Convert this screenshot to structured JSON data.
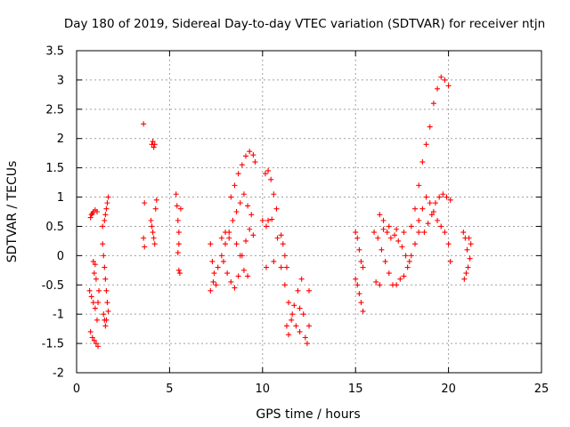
{
  "chart_data": {
    "type": "scatter",
    "title": "Day 180 of 2019, Sidereal Day-to-day VTEC variation (SDTVAR) for receiver ntjn",
    "xlabel": "GPS time / hours",
    "ylabel": "SDTVAR / TECUs",
    "xlim": [
      0,
      25
    ],
    "ylim": [
      -2,
      3.5
    ],
    "xticks": [
      "0",
      "5",
      "10",
      "15",
      "20",
      "25"
    ],
    "yticks": [
      "-2",
      "-1.5",
      "-1",
      "-0.5",
      "0",
      "0.5",
      "1",
      "1.5",
      "2",
      "2.5",
      "3",
      "3.5"
    ],
    "xtick_values": [
      0,
      5,
      10,
      15,
      20,
      25
    ],
    "ytick_values": [
      -2,
      -1.5,
      -1,
      -0.5,
      0,
      0.5,
      1,
      1.5,
      2,
      2.5,
      3,
      3.5
    ],
    "grid": true,
    "marker": "+",
    "color": "#ff0000",
    "series": [
      {
        "points": [
          [
            0.75,
            0.65
          ],
          [
            0.8,
            0.7
          ],
          [
            0.85,
            0.72
          ],
          [
            0.9,
            0.75
          ],
          [
            1.0,
            0.78
          ],
          [
            1.1,
            0.75
          ],
          [
            0.7,
            -0.6
          ],
          [
            0.8,
            -0.7
          ],
          [
            0.9,
            -0.8
          ],
          [
            1.0,
            -0.9
          ],
          [
            1.1,
            -1.1
          ],
          [
            1.15,
            -0.8
          ],
          [
            1.2,
            -0.6
          ],
          [
            0.75,
            -1.3
          ],
          [
            0.85,
            -1.4
          ],
          [
            0.95,
            -1.45
          ],
          [
            1.05,
            -1.5
          ],
          [
            1.15,
            -1.55
          ],
          [
            0.9,
            -0.1
          ],
          [
            1.0,
            -0.15
          ],
          [
            0.95,
            -0.3
          ],
          [
            1.05,
            -0.4
          ],
          [
            1.4,
            0.5
          ],
          [
            1.5,
            0.6
          ],
          [
            1.55,
            0.7
          ],
          [
            1.6,
            0.8
          ],
          [
            1.65,
            0.9
          ],
          [
            1.7,
            1.0
          ],
          [
            1.4,
            0.2
          ],
          [
            1.45,
            0.0
          ],
          [
            1.5,
            -0.2
          ],
          [
            1.55,
            -0.4
          ],
          [
            1.6,
            -0.6
          ],
          [
            1.65,
            -0.8
          ],
          [
            1.7,
            -0.95
          ],
          [
            1.45,
            -1.0
          ],
          [
            1.5,
            -1.1
          ],
          [
            1.55,
            -1.2
          ],
          [
            1.6,
            -1.1
          ],
          [
            3.6,
            2.25
          ],
          [
            3.65,
            0.9
          ],
          [
            3.6,
            0.3
          ],
          [
            3.65,
            0.15
          ],
          [
            4.0,
            0.6
          ],
          [
            4.05,
            0.5
          ],
          [
            4.1,
            0.4
          ],
          [
            4.15,
            0.3
          ],
          [
            4.2,
            0.2
          ],
          [
            4.05,
            1.9
          ],
          [
            4.1,
            1.95
          ],
          [
            4.15,
            1.85
          ],
          [
            4.2,
            1.9
          ],
          [
            4.25,
            0.8
          ],
          [
            4.3,
            0.95
          ],
          [
            5.35,
            1.05
          ],
          [
            5.4,
            0.85
          ],
          [
            5.45,
            0.6
          ],
          [
            5.5,
            0.4
          ],
          [
            5.5,
            0.2
          ],
          [
            5.45,
            0.05
          ],
          [
            5.5,
            -0.25
          ],
          [
            5.55,
            -0.3
          ],
          [
            5.6,
            0.8
          ],
          [
            7.2,
            0.2
          ],
          [
            7.3,
            -0.1
          ],
          [
            7.4,
            -0.3
          ],
          [
            7.5,
            -0.5
          ],
          [
            7.2,
            -0.6
          ],
          [
            7.35,
            -0.45
          ],
          [
            7.6,
            -0.2
          ],
          [
            7.8,
            0.0
          ],
          [
            8.0,
            0.2
          ],
          [
            8.2,
            0.4
          ],
          [
            8.4,
            0.6
          ],
          [
            8.6,
            0.75
          ],
          [
            8.8,
            0.9
          ],
          [
            9.0,
            1.05
          ],
          [
            9.2,
            0.85
          ],
          [
            9.4,
            0.7
          ],
          [
            7.9,
            -0.1
          ],
          [
            8.1,
            -0.3
          ],
          [
            8.3,
            -0.45
          ],
          [
            8.5,
            -0.55
          ],
          [
            8.7,
            -0.35
          ],
          [
            8.9,
            0.0
          ],
          [
            9.1,
            0.25
          ],
          [
            9.3,
            0.45
          ],
          [
            9.5,
            0.35
          ],
          [
            7.8,
            0.3
          ],
          [
            8.0,
            0.4
          ],
          [
            8.2,
            0.3
          ],
          [
            8.3,
            1.0
          ],
          [
            8.5,
            1.2
          ],
          [
            8.7,
            1.4
          ],
          [
            8.9,
            1.55
          ],
          [
            9.1,
            1.7
          ],
          [
            9.3,
            1.78
          ],
          [
            9.5,
            1.72
          ],
          [
            9.6,
            1.6
          ],
          [
            8.6,
            0.2
          ],
          [
            8.8,
            0.0
          ],
          [
            9.0,
            -0.25
          ],
          [
            9.2,
            -0.35
          ],
          [
            10.0,
            0.6
          ],
          [
            10.15,
            1.4
          ],
          [
            10.3,
            1.45
          ],
          [
            10.45,
            1.3
          ],
          [
            10.6,
            1.05
          ],
          [
            10.75,
            0.8
          ],
          [
            10.2,
            0.5
          ],
          [
            10.3,
            0.6
          ],
          [
            10.5,
            0.62
          ],
          [
            10.2,
            -0.2
          ],
          [
            10.6,
            -0.1
          ],
          [
            10.8,
            0.3
          ],
          [
            11.0,
            -0.2
          ],
          [
            11.2,
            -0.5
          ],
          [
            11.4,
            -0.8
          ],
          [
            11.6,
            -1.0
          ],
          [
            11.8,
            -1.2
          ],
          [
            12.0,
            -1.3
          ],
          [
            11.0,
            0.35
          ],
          [
            11.1,
            0.2
          ],
          [
            11.2,
            0.0
          ],
          [
            11.3,
            -0.2
          ],
          [
            11.3,
            -1.2
          ],
          [
            11.4,
            -1.35
          ],
          [
            11.55,
            -1.1
          ],
          [
            11.7,
            -0.85
          ],
          [
            11.9,
            -0.6
          ],
          [
            12.1,
            -0.4
          ],
          [
            12.0,
            -0.9
          ],
          [
            12.2,
            -1.0
          ],
          [
            12.3,
            -1.4
          ],
          [
            12.4,
            -1.5
          ],
          [
            12.5,
            -1.2
          ],
          [
            12.5,
            -0.6
          ],
          [
            15.0,
            0.4
          ],
          [
            15.1,
            0.3
          ],
          [
            15.2,
            0.1
          ],
          [
            15.3,
            -0.1
          ],
          [
            15.4,
            -0.2
          ],
          [
            15.0,
            -0.4
          ],
          [
            15.1,
            -0.5
          ],
          [
            15.2,
            -0.65
          ],
          [
            15.3,
            -0.8
          ],
          [
            15.4,
            -0.95
          ],
          [
            16.0,
            0.4
          ],
          [
            16.2,
            0.3
          ],
          [
            16.4,
            0.1
          ],
          [
            16.6,
            -0.1
          ],
          [
            16.8,
            -0.3
          ],
          [
            17.0,
            -0.5
          ],
          [
            16.1,
            -0.45
          ],
          [
            16.3,
            -0.5
          ],
          [
            16.5,
            0.45
          ],
          [
            16.7,
            0.4
          ],
          [
            16.9,
            0.3
          ],
          [
            17.1,
            0.35
          ],
          [
            17.3,
            0.25
          ],
          [
            17.5,
            0.15
          ],
          [
            17.7,
            0.0
          ],
          [
            17.9,
            -0.1
          ],
          [
            16.3,
            0.7
          ],
          [
            16.5,
            0.6
          ],
          [
            16.8,
            0.5
          ],
          [
            17.2,
            0.45
          ],
          [
            17.6,
            0.4
          ],
          [
            18.0,
            0.5
          ],
          [
            18.2,
            0.8
          ],
          [
            18.4,
            1.2
          ],
          [
            18.6,
            1.6
          ],
          [
            18.8,
            1.9
          ],
          [
            19.0,
            2.2
          ],
          [
            19.2,
            2.6
          ],
          [
            19.4,
            2.85
          ],
          [
            19.6,
            3.05
          ],
          [
            19.8,
            3.0
          ],
          [
            20.0,
            2.9
          ],
          [
            18.4,
            0.6
          ],
          [
            18.6,
            0.8
          ],
          [
            18.8,
            1.0
          ],
          [
            19.0,
            0.9
          ],
          [
            19.2,
            0.75
          ],
          [
            19.4,
            0.6
          ],
          [
            19.6,
            0.5
          ],
          [
            19.8,
            0.4
          ],
          [
            20.0,
            0.2
          ],
          [
            20.1,
            -0.1
          ],
          [
            18.7,
            0.4
          ],
          [
            18.9,
            0.55
          ],
          [
            19.1,
            0.7
          ],
          [
            19.3,
            0.9
          ],
          [
            19.5,
            1.0
          ],
          [
            19.7,
            1.05
          ],
          [
            19.9,
            1.0
          ],
          [
            20.1,
            0.95
          ],
          [
            18.0,
            0.0
          ],
          [
            18.2,
            0.2
          ],
          [
            18.4,
            0.4
          ],
          [
            17.8,
            -0.2
          ],
          [
            17.6,
            -0.35
          ],
          [
            17.4,
            -0.4
          ],
          [
            17.2,
            -0.5
          ],
          [
            20.8,
            0.4
          ],
          [
            20.9,
            0.3
          ],
          [
            21.0,
            0.1
          ],
          [
            21.1,
            0.3
          ],
          [
            21.2,
            0.2
          ],
          [
            20.85,
            -0.4
          ],
          [
            20.95,
            -0.3
          ],
          [
            21.05,
            -0.2
          ],
          [
            21.15,
            -0.05
          ]
        ]
      }
    ]
  }
}
